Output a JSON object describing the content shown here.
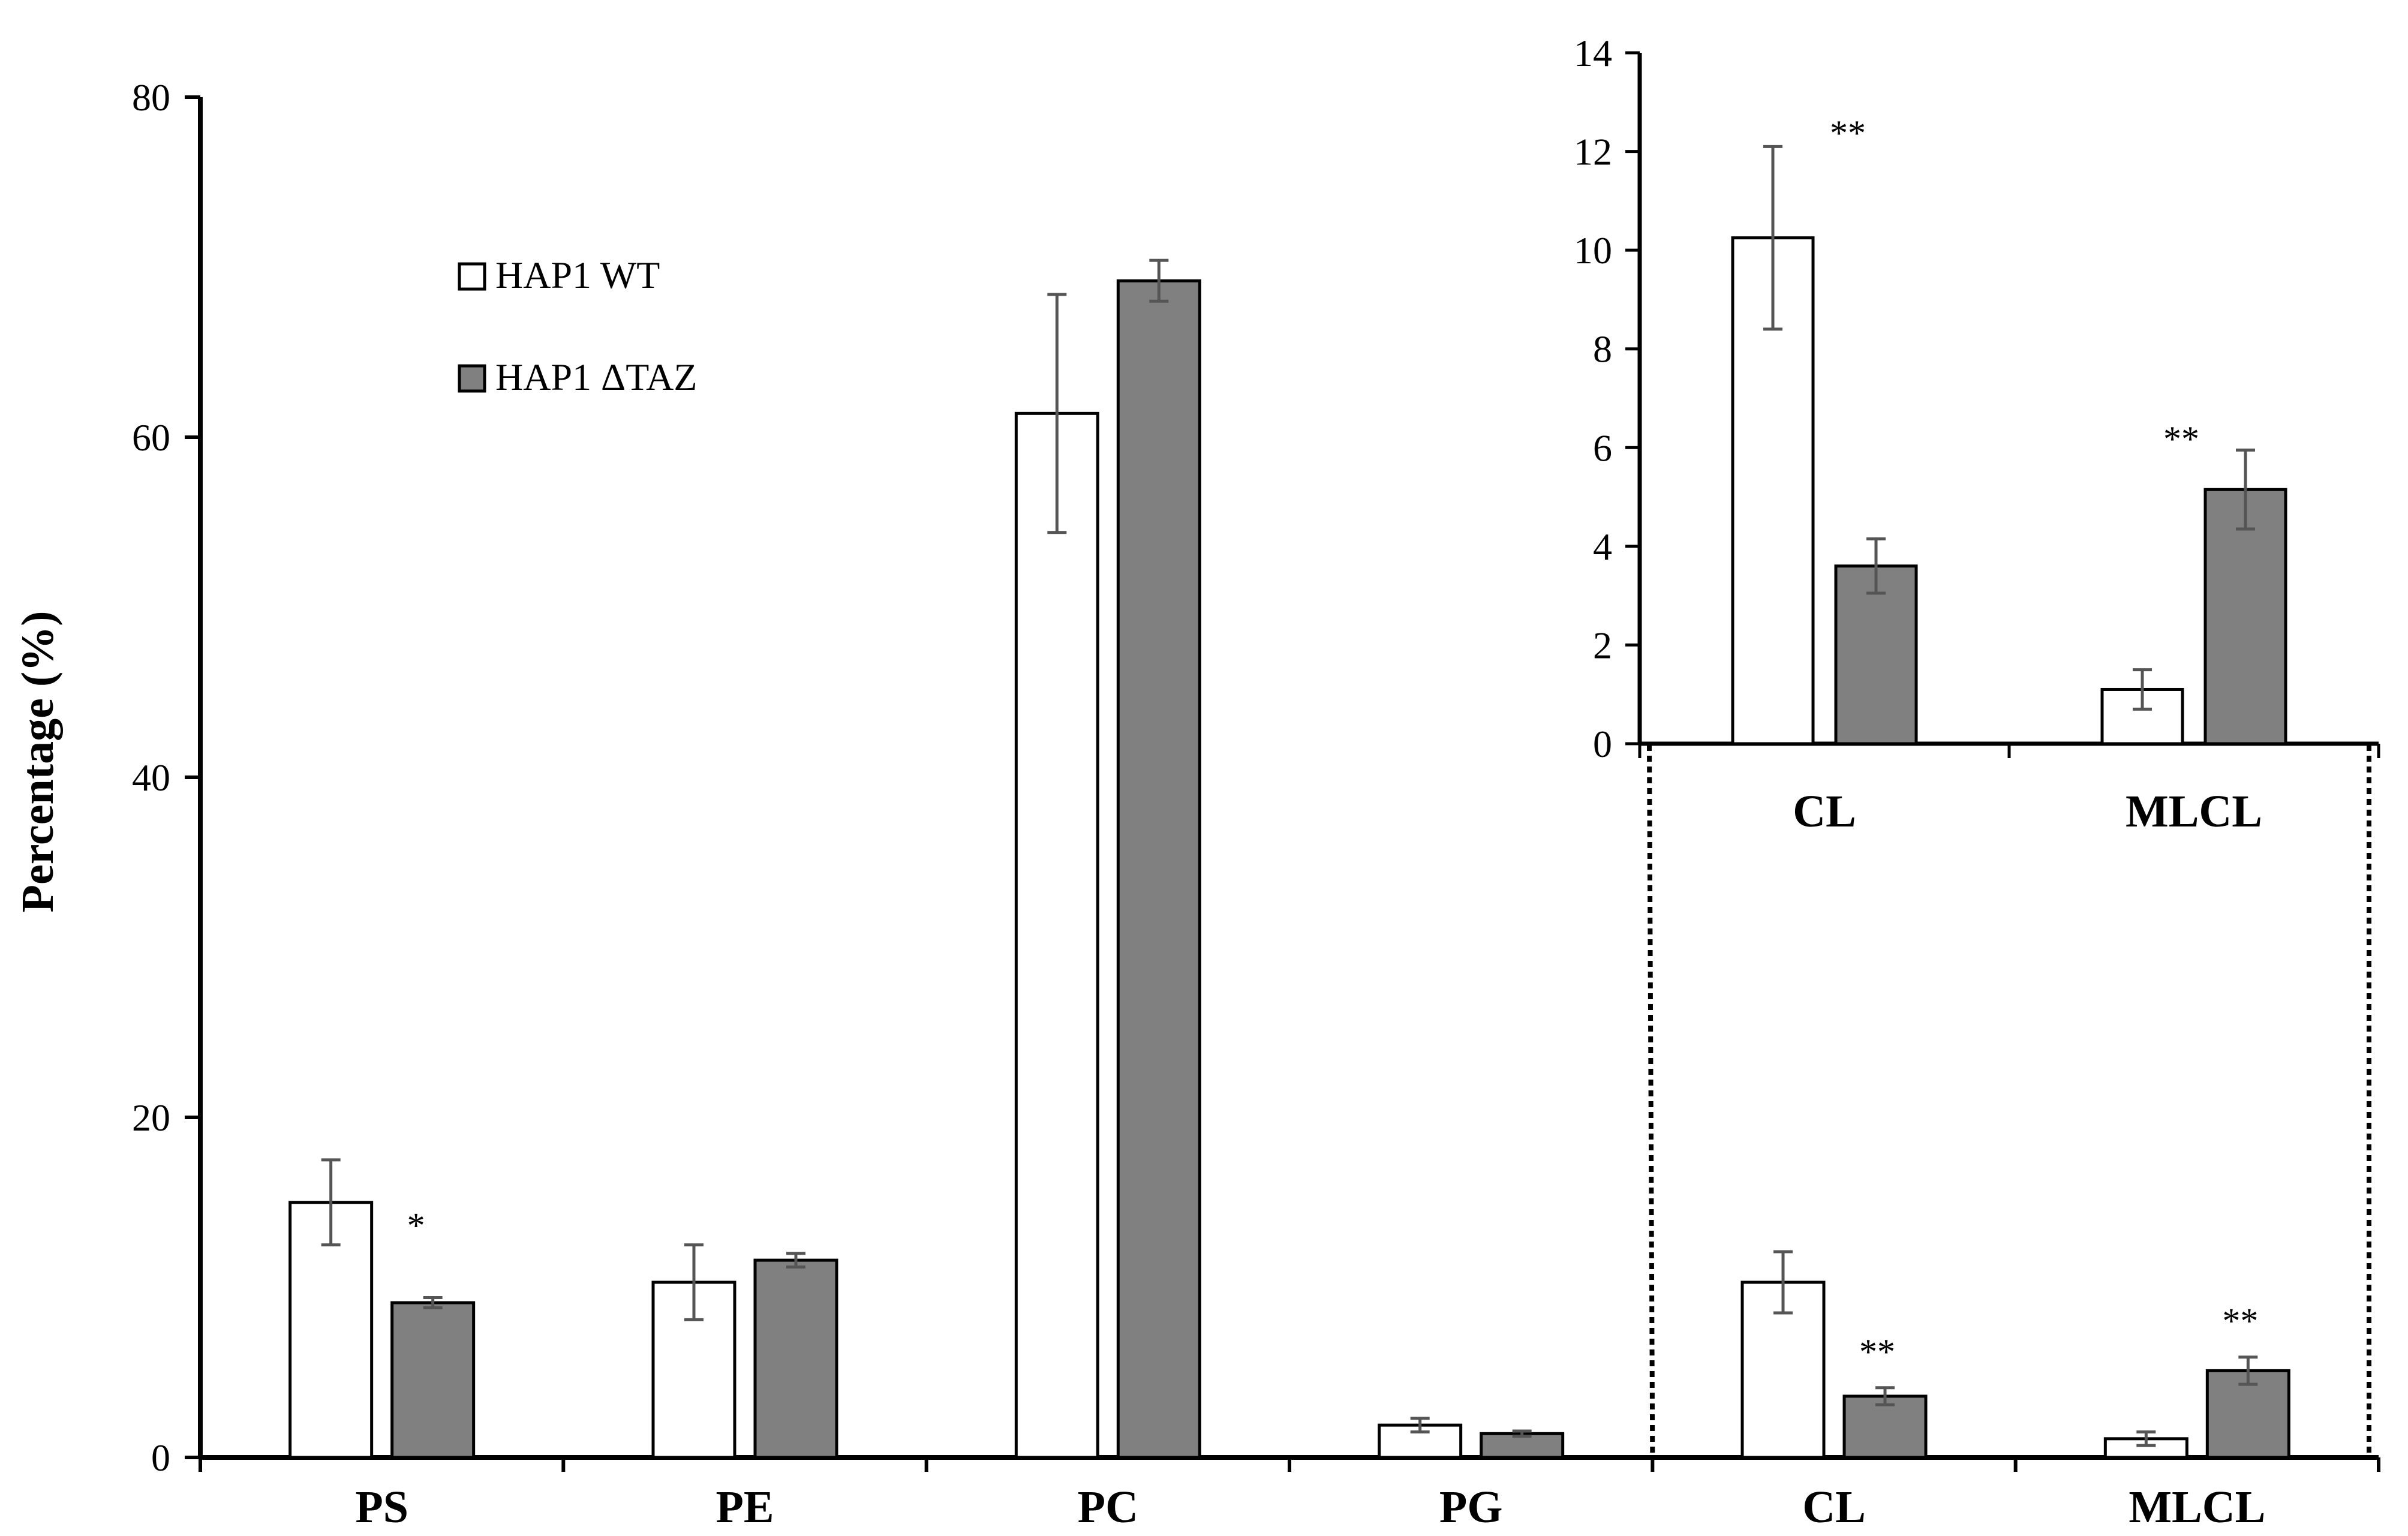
{
  "chart_data": [
    {
      "id": "main",
      "type": "bar",
      "ylabel": "Percentage (%)",
      "xlabel": "",
      "ylim": [
        0,
        80
      ],
      "yticks": [
        0,
        20,
        40,
        60,
        80
      ],
      "categories": [
        "PS",
        "PE",
        "PC",
        "PG",
        "CL",
        "MLCL"
      ],
      "series": [
        {
          "name": "HAP1 WT",
          "color": "#ffffff",
          "values": [
            15.0,
            10.3,
            61.4,
            1.9,
            10.3,
            1.1
          ],
          "errors": [
            2.5,
            2.2,
            7.0,
            0.4,
            1.8,
            0.4
          ]
        },
        {
          "name": "HAP1 ΔTAZ",
          "color": "#808080",
          "values": [
            9.1,
            11.6,
            69.2,
            1.4,
            3.6,
            5.1
          ],
          "errors": [
            0.3,
            0.4,
            1.2,
            0.15,
            0.5,
            0.8
          ]
        }
      ],
      "annotations": [
        "*",
        "",
        "",
        "",
        "**",
        "**"
      ],
      "legend": {
        "position": "top-left",
        "entries": [
          "HAP1 WT",
          "HAP1 ΔTAZ"
        ]
      }
    },
    {
      "id": "inset",
      "type": "bar",
      "ylim": [
        0,
        14
      ],
      "yticks": [
        0,
        2,
        4,
        6,
        8,
        10,
        12,
        14
      ],
      "categories": [
        "CL",
        "MLCL"
      ],
      "series": [
        {
          "name": "HAP1 WT",
          "color": "#ffffff",
          "values": [
            10.25,
            1.1
          ],
          "errors": [
            1.85,
            0.4
          ]
        },
        {
          "name": "HAP1 ΔTAZ",
          "color": "#808080",
          "values": [
            3.6,
            5.15
          ],
          "errors": [
            0.55,
            0.8
          ]
        }
      ],
      "annotations": [
        "**",
        "**"
      ]
    }
  ]
}
